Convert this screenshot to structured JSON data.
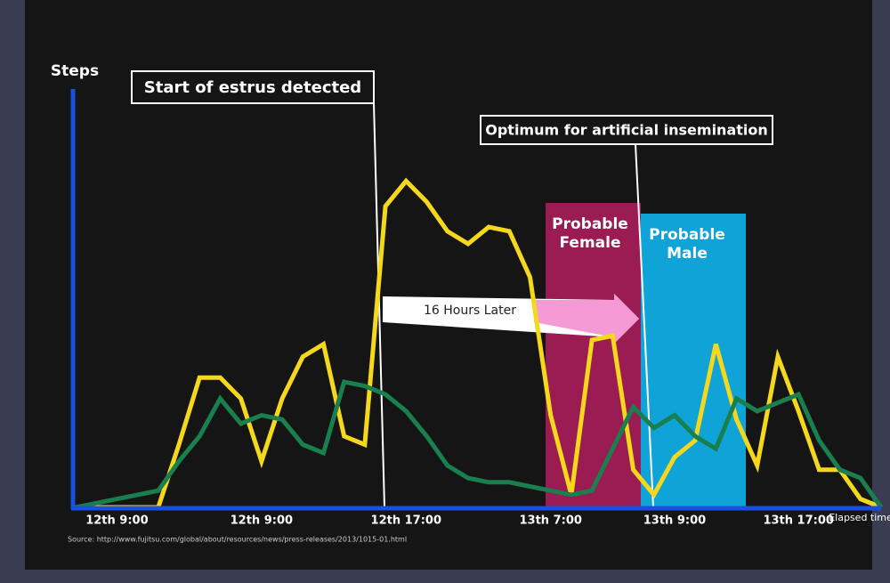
{
  "chart_data": {
    "type": "line",
    "y_label": "Steps",
    "x_label": "Elapsed time",
    "categories": [
      null,
      null,
      "12th 9:00",
      null,
      null,
      null,
      null,
      null,
      null,
      "12th 9:00",
      null,
      null,
      null,
      null,
      null,
      null,
      "12th 17:00",
      null,
      null,
      null,
      null,
      null,
      null,
      "13th 7:00",
      null,
      null,
      null,
      null,
      null,
      "13th 9:00",
      null,
      null,
      null,
      null,
      null,
      "13th 17:00",
      null,
      null,
      null,
      null
    ],
    "series": [
      {
        "color": "#f5d81c",
        "values": [
          0,
          0,
          0,
          0,
          0,
          15,
          31,
          31,
          26,
          11,
          26,
          36,
          39,
          17,
          15,
          72,
          78,
          73,
          66,
          63,
          67,
          66,
          55,
          22,
          3,
          40,
          41,
          9,
          3,
          12,
          16,
          39,
          21,
          10,
          36,
          23,
          9,
          9,
          2,
          0
        ]
      },
      {
        "color": "#1a7f4e",
        "values": [
          0,
          1,
          2,
          3,
          4,
          11,
          17,
          26,
          20,
          22,
          21,
          15,
          13,
          30,
          29,
          27,
          23,
          17,
          10,
          7,
          6,
          6,
          5,
          4,
          3,
          4,
          14,
          24,
          19,
          22,
          17,
          14,
          26,
          23,
          25,
          27,
          16,
          9,
          7,
          0
        ]
      }
    ],
    "ylim": [
      0,
      100
    ],
    "annotations": [
      "Start of estrus detected",
      "Optimum for artificial insemination",
      "Probable Female",
      "Probable Male",
      "16 Hours Later"
    ],
    "source": "Source: http://www.fujitsu.com/global/about/resources/news/press-releases/2013/1015-01.html"
  }
}
